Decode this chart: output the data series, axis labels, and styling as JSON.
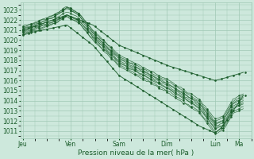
{
  "background_color": "#cde8dc",
  "grid_color": "#a0c8b4",
  "line_color": "#1a5c2a",
  "yticks": [
    1011,
    1012,
    1013,
    1014,
    1015,
    1016,
    1017,
    1018,
    1019,
    1020,
    1021,
    1022,
    1023
  ],
  "ylim": [
    1010.3,
    1023.7
  ],
  "xlabel": "Pression niveau de la mer( hPa )",
  "xtick_labels": [
    "Jeu",
    "Ven",
    "Sam",
    "Dim",
    "Lun",
    "Ma"
  ],
  "xtick_positions": [
    0,
    24,
    48,
    72,
    96,
    108
  ],
  "xlim": [
    -1,
    114
  ],
  "text_color": "#1a5c2a",
  "figsize": [
    3.2,
    2.0
  ],
  "dpi": 100
}
